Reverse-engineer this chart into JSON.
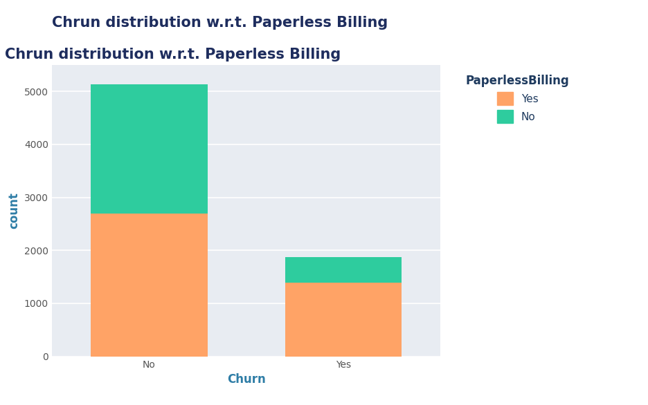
{
  "title": "Chrun distribution w.r.t. Paperless Billing",
  "xlabel": "Churn",
  "ylabel": "count",
  "categories": [
    "No",
    "Yes"
  ],
  "series": {
    "Yes": [
      2700,
      1390
    ],
    "No": [
      2430,
      480
    ]
  },
  "colors": {
    "Yes": "#FFA366",
    "No": "#2ECC9E"
  },
  "legend_title": "PaperlessBilling",
  "legend_labels": [
    "Yes",
    "No"
  ],
  "ylim": [
    0,
    5500
  ],
  "yticks": [
    0,
    1000,
    2000,
    3000,
    4000,
    5000
  ],
  "plot_bg_color": "#E8ECF2",
  "fig_bg_color": "#FFFFFF",
  "title_color": "#1E2D5E",
  "axis_label_color": "#2E7DA6",
  "tick_color": "#555555",
  "legend_text_color": "#1E3A5E",
  "bar_width": 0.6,
  "title_fontsize": 15,
  "label_fontsize": 12,
  "tick_fontsize": 10,
  "legend_title_fontsize": 12,
  "legend_fontsize": 11,
  "figsize": [
    9.36,
    5.86
  ],
  "dpi": 100
}
